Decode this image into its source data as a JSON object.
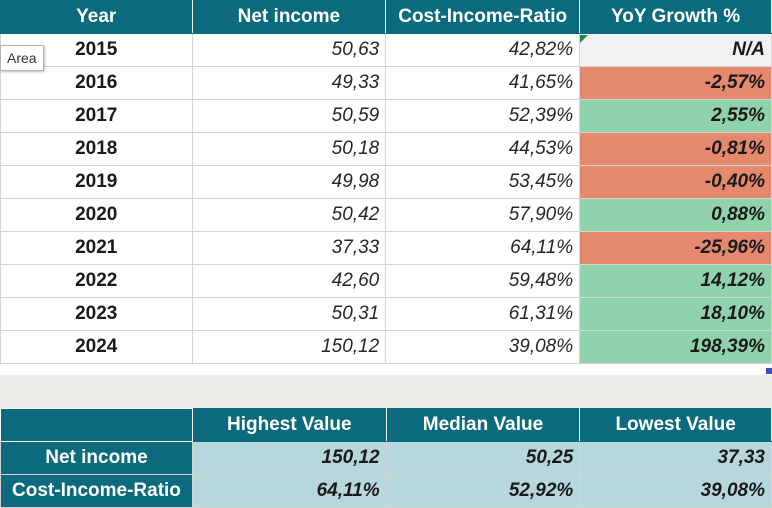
{
  "headers": {
    "year": "Year",
    "net_income": "Net income",
    "cir": "Cost-Income-Ratio",
    "yoy": "YoY Growth %"
  },
  "rows": [
    {
      "year": "2015",
      "net_income": "50,63",
      "cir": "42,82%",
      "yoy": "N/A",
      "trend": "neutral"
    },
    {
      "year": "2016",
      "net_income": "49,33",
      "cir": "41,65%",
      "yoy": "-2,57%",
      "trend": "negative"
    },
    {
      "year": "2017",
      "net_income": "50,59",
      "cir": "52,39%",
      "yoy": "2,55%",
      "trend": "positive"
    },
    {
      "year": "2018",
      "net_income": "50,18",
      "cir": "44,53%",
      "yoy": "-0,81%",
      "trend": "negative"
    },
    {
      "year": "2019",
      "net_income": "49,98",
      "cir": "53,45%",
      "yoy": "-0,40%",
      "trend": "negative"
    },
    {
      "year": "2020",
      "net_income": "50,42",
      "cir": "57,90%",
      "yoy": "0,88%",
      "trend": "positive"
    },
    {
      "year": "2021",
      "net_income": "37,33",
      "cir": "64,11%",
      "yoy": "-25,96%",
      "trend": "negative"
    },
    {
      "year": "2022",
      "net_income": "42,60",
      "cir": "59,48%",
      "yoy": "14,12%",
      "trend": "positive"
    },
    {
      "year": "2023",
      "net_income": "50,31",
      "cir": "61,31%",
      "yoy": "18,10%",
      "trend": "positive"
    },
    {
      "year": "2024",
      "net_income": "150,12",
      "cir": "39,08%",
      "yoy": "198,39%",
      "trend": "positive"
    }
  ],
  "summary": {
    "headers": {
      "highest": "Highest Value",
      "median": "Median Value",
      "lowest": "Lowest Value"
    },
    "rows": [
      {
        "label": "Net income",
        "highest": "150,12",
        "median": "50,25",
        "lowest": "37,33"
      },
      {
        "label": "Cost-Income-Ratio",
        "highest": "64,11%",
        "median": "52,92%",
        "lowest": "39,08%"
      }
    ]
  },
  "tooltip": "Area",
  "colors": {
    "header": "#0c6a7e",
    "negative": "#e4896e",
    "positive": "#90d2ac",
    "neutral": "#f2f2f2",
    "summary_values": "#b6d8dc"
  }
}
